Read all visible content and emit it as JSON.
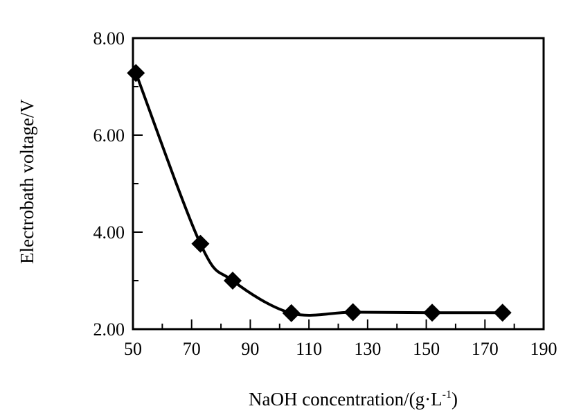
{
  "chart_data": {
    "type": "line",
    "title": "",
    "xlabel": "NaOH concentration/(g·L",
    "xlabel_superscript": "-1",
    "xlabel_suffix": ")",
    "ylabel": "Electrobath voltage/V",
    "xlim": [
      50,
      190
    ],
    "ylim": [
      2.0,
      8.0
    ],
    "x_ticks": [
      "50",
      "70",
      "90",
      "110",
      "130",
      "150",
      "170",
      "190"
    ],
    "y_ticks": [
      "2.00",
      "4.00",
      "6.00",
      "8.00"
    ],
    "grid": false,
    "marker": "diamond",
    "color": "#000000",
    "series": [
      {
        "x": [
          51,
          73,
          84,
          104,
          125,
          152,
          176
        ],
        "y": [
          7.28,
          3.76,
          3.0,
          2.33,
          2.35,
          2.34,
          2.34
        ]
      }
    ]
  }
}
